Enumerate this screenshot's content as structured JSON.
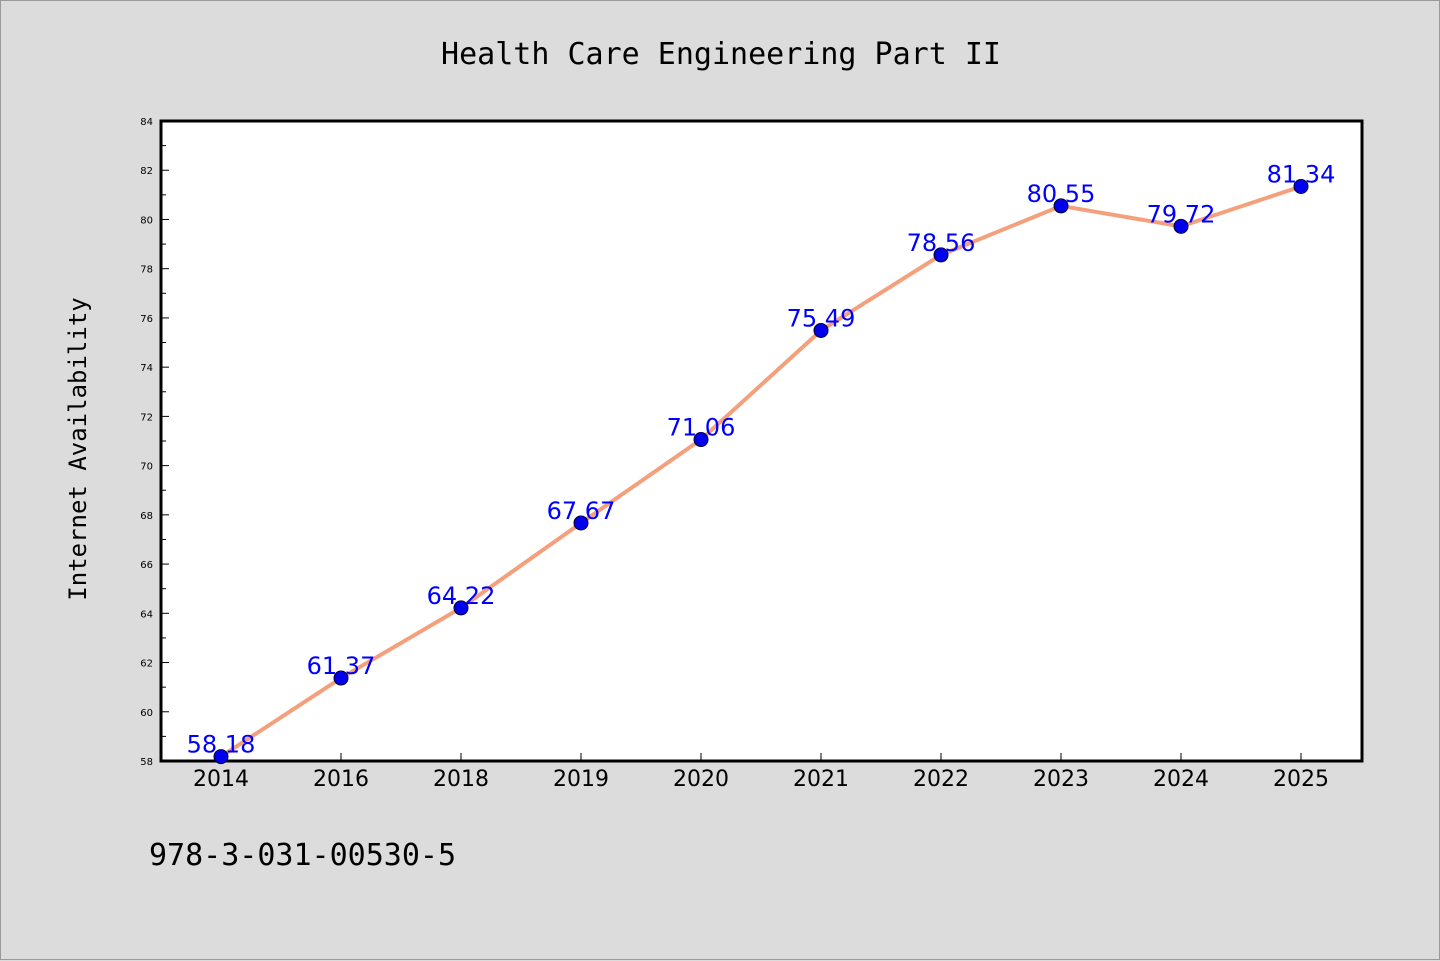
{
  "chart_data": {
    "type": "line",
    "title": "Health Care Engineering Part II",
    "xlabel": "",
    "ylabel": "Internet Availability",
    "categories": [
      "2014",
      "2016",
      "2018",
      "2019",
      "2020",
      "2021",
      "2022",
      "2023",
      "2024",
      "2025"
    ],
    "series": [
      {
        "values": [
          58.18,
          61.37,
          64.22,
          67.67,
          71.06,
          75.49,
          78.56,
          80.55,
          79.72,
          81.34
        ],
        "data_labels": [
          "58.18",
          "61.37",
          "64.22",
          "67.67",
          "71.06",
          "75.49",
          "78.56",
          "80.55",
          "79.72",
          "81.34"
        ],
        "line_color": "#f4a07c",
        "marker_color": "#0000ee",
        "label_color": "#0000ff"
      }
    ],
    "ylim": [
      58,
      84
    ],
    "yticks": [
      "58",
      "60",
      "62",
      "64",
      "66",
      "68",
      "70",
      "72",
      "74",
      "76",
      "78",
      "80",
      "82",
      "84"
    ],
    "grid": false,
    "legend": "none"
  },
  "footer": {
    "isbn": "978-3-031-00530-5"
  },
  "colors": {
    "background": "#dcdcdc",
    "plot_area": "#ffffff",
    "axis": "#000000"
  }
}
